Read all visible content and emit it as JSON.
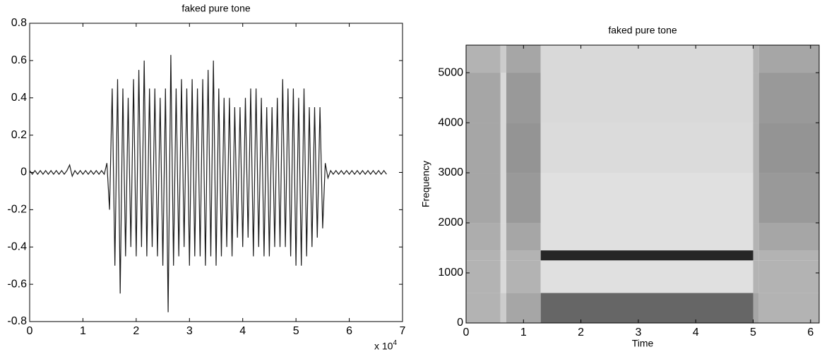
{
  "chart_data": [
    {
      "type": "line",
      "title": "faked pure tone",
      "color": "#1a1a1a",
      "x": [
        0,
        500,
        1000,
        1500,
        2000,
        2500,
        3000,
        3500,
        4000,
        4500,
        5000,
        5500,
        6000,
        6500,
        7000,
        7500,
        8000,
        8500,
        9000,
        9500,
        10000,
        10500,
        11000,
        11500,
        12000,
        12500,
        13000,
        13500,
        14000,
        14500,
        15000,
        15500,
        16000,
        16500,
        17000,
        17500,
        18000,
        18500,
        19000,
        19500,
        20000,
        20500,
        21000,
        21500,
        22000,
        22500,
        23000,
        23500,
        24000,
        24500,
        25000,
        25500,
        26000,
        26500,
        27000,
        27500,
        28000,
        28500,
        29000,
        29500,
        30000,
        30500,
        31000,
        31500,
        32000,
        32500,
        33000,
        33500,
        34000,
        34500,
        35000,
        35500,
        36000,
        36500,
        37000,
        37500,
        38000,
        38500,
        39000,
        39500,
        40000,
        40500,
        41000,
        41500,
        42000,
        42500,
        43000,
        43500,
        44000,
        44500,
        45000,
        45500,
        46000,
        46500,
        47000,
        47500,
        48000,
        48500,
        49000,
        49500,
        50000,
        50500,
        51000,
        51500,
        52000,
        52500,
        53000,
        53500,
        54000,
        54500,
        55000,
        55500,
        56000,
        56500,
        57000,
        57500,
        58000,
        58500,
        59000,
        59500,
        60000,
        60500,
        61000,
        61500,
        62000,
        62500,
        63000,
        63500,
        64000,
        64500,
        65000,
        65500,
        66000,
        66500,
        67000
      ],
      "values": [
        0.01,
        -0.01,
        0.01,
        -0.01,
        0.01,
        -0.01,
        0.01,
        -0.01,
        0.01,
        -0.01,
        0.01,
        -0.01,
        0.01,
        -0.01,
        0.01,
        0.04,
        -0.02,
        0.01,
        -0.01,
        0.01,
        -0.01,
        0.01,
        -0.01,
        0.01,
        -0.01,
        0.01,
        -0.01,
        0.01,
        -0.01,
        0.05,
        -0.2,
        0.45,
        -0.5,
        0.5,
        -0.65,
        0.45,
        -0.45,
        0.4,
        -0.4,
        0.5,
        -0.45,
        0.55,
        -0.4,
        0.6,
        -0.45,
        0.45,
        -0.4,
        0.45,
        -0.45,
        0.4,
        -0.5,
        0.45,
        -0.75,
        0.63,
        -0.5,
        0.45,
        -0.45,
        0.5,
        -0.4,
        0.45,
        -0.5,
        0.5,
        -0.45,
        0.45,
        -0.45,
        0.5,
        -0.5,
        0.55,
        -0.45,
        0.6,
        -0.5,
        0.45,
        -0.45,
        0.4,
        -0.4,
        0.4,
        -0.45,
        0.35,
        -0.35,
        0.35,
        -0.4,
        0.4,
        -0.35,
        0.45,
        -0.45,
        0.45,
        -0.4,
        0.4,
        -0.45,
        0.35,
        -0.45,
        0.35,
        -0.4,
        0.4,
        -0.4,
        0.5,
        -0.4,
        0.45,
        -0.45,
        0.45,
        -0.5,
        0.4,
        -0.5,
        0.45,
        -0.45,
        0.35,
        -0.4,
        0.35,
        -0.35,
        0.35,
        -0.3,
        0.05,
        -0.03,
        0.01,
        -0.01,
        0.01,
        -0.01,
        0.01,
        -0.01,
        0.01,
        -0.01,
        0.01,
        -0.01,
        0.01,
        -0.01,
        0.01,
        -0.01,
        0.01,
        -0.01,
        0.01,
        -0.01,
        0.01,
        -0.01,
        0.01,
        -0.01
      ],
      "xlim": [
        0,
        70000
      ],
      "xticks": [
        {
          "value": 0,
          "label": "0"
        },
        {
          "value": 10000,
          "label": "1"
        },
        {
          "value": 20000,
          "label": "2"
        },
        {
          "value": 30000,
          "label": "3"
        },
        {
          "value": 40000,
          "label": "4"
        },
        {
          "value": 50000,
          "label": "5"
        },
        {
          "value": 60000,
          "label": "6"
        },
        {
          "value": 70000,
          "label": "7"
        }
      ],
      "xtick_multiplier": "x 10",
      "xtick_multiplier_exponent": "4",
      "ylim": [
        -0.8,
        0.8
      ],
      "yticks": [
        -0.8,
        -0.6,
        -0.4,
        -0.2,
        0,
        0.2,
        0.4,
        0.6,
        0.8
      ]
    },
    {
      "type": "heatmap",
      "title": "faked pure tone",
      "xlabel": "Time",
      "ylabel": "Frequency",
      "colormap": "gray",
      "x_edges": [
        0,
        0.6,
        0.7,
        1.3,
        5.0,
        5.1,
        6.15
      ],
      "y_edges": [
        0,
        600,
        1250,
        1450,
        2000,
        3000,
        4000,
        5000,
        5550
      ],
      "z": [
        [
          0.3,
          0.2,
          0.35,
          0.6,
          0.35,
          0.3
        ],
        [
          0.3,
          0.15,
          0.3,
          0.12,
          0.3,
          0.3
        ],
        [
          0.3,
          0.15,
          0.3,
          0.85,
          0.3,
          0.3
        ],
        [
          0.32,
          0.15,
          0.35,
          0.12,
          0.3,
          0.35
        ],
        [
          0.35,
          0.15,
          0.4,
          0.12,
          0.3,
          0.4
        ],
        [
          0.35,
          0.15,
          0.42,
          0.14,
          0.3,
          0.42
        ],
        [
          0.35,
          0.15,
          0.4,
          0.15,
          0.3,
          0.4
        ],
        [
          0.3,
          0.2,
          0.35,
          0.15,
          0.3,
          0.35
        ]
      ],
      "xlim": [
        0,
        6.15
      ],
      "xticks": [
        0,
        1,
        2,
        3,
        4,
        5,
        6
      ],
      "ylim": [
        0,
        5550
      ],
      "yticks": [
        0,
        1000,
        2000,
        3000,
        4000,
        5000
      ]
    }
  ]
}
